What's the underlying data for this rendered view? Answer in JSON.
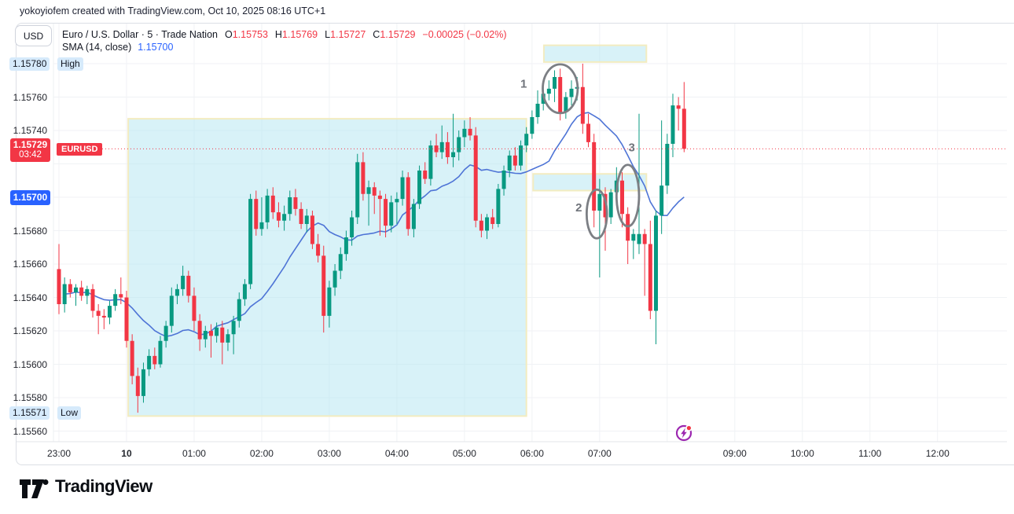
{
  "header": {
    "attribution": "yokoyiofem created with TradingView.com, Oct 10, 2025 08:16 UTC+1"
  },
  "toolbar": {
    "currency_label": "USD"
  },
  "legend": {
    "symbol_title": "Euro / U.S. Dollar · 5 · Trade Nation",
    "ohlc": [
      {
        "label": "O",
        "value": "1.15753"
      },
      {
        "label": "H",
        "value": "1.15769"
      },
      {
        "label": "L",
        "value": "1.15727"
      },
      {
        "label": "C",
        "value": "1.15729"
      }
    ],
    "change": "−0.00025 (−0.02%)",
    "indicator": {
      "name": "SMA (14, close)",
      "value": "1.15700"
    }
  },
  "price_axis": {
    "labels": [
      {
        "text": "1.15760",
        "price": 1.1576
      },
      {
        "text": "1.15740",
        "price": 1.1574
      },
      {
        "text": "1.15680",
        "price": 1.1568
      },
      {
        "text": "1.15660",
        "price": 1.1566
      },
      {
        "text": "1.15640",
        "price": 1.1564
      },
      {
        "text": "1.15620",
        "price": 1.1562
      },
      {
        "text": "1.15600",
        "price": 1.156
      },
      {
        "text": "1.15580",
        "price": 1.1558
      },
      {
        "text": "1.15560",
        "price": 1.1556
      }
    ],
    "high_marker": {
      "value": "1.15780",
      "tag": "High",
      "price": 1.1578
    },
    "low_marker": {
      "value": "1.15571",
      "tag": "Low",
      "price": 1.15571
    },
    "price_badge": {
      "price": "1.15729",
      "countdown": "03:42",
      "price_num": 1.15729
    },
    "symbol_chip": "EURUSD",
    "sma_badge": {
      "text": "1.15700",
      "price_num": 1.157
    }
  },
  "time_axis": {
    "labels": [
      {
        "text": "23:00",
        "i": 0
      },
      {
        "text": "10",
        "i": 12,
        "bold": true
      },
      {
        "text": "01:00",
        "i": 24
      },
      {
        "text": "02:00",
        "i": 36
      },
      {
        "text": "03:00",
        "i": 48
      },
      {
        "text": "04:00",
        "i": 60
      },
      {
        "text": "05:00",
        "i": 72
      },
      {
        "text": "06:00",
        "i": 84
      },
      {
        "text": "07:00",
        "i": 96
      },
      {
        "text": "09:00",
        "i": 120
      },
      {
        "text": "10:00",
        "i": 132
      },
      {
        "text": "11:00",
        "i": 144
      },
      {
        "text": "12:00",
        "i": 156
      }
    ]
  },
  "chart_data": {
    "type": "candlestick",
    "symbol": "EURUSD",
    "title": "Euro / U.S. Dollar · 5 · Trade Nation",
    "interval_minutes": 5,
    "start_time": "23:00",
    "session_high": 1.1578,
    "session_low": 1.15571,
    "last_bar": {
      "open": 1.15753,
      "high": 1.15769,
      "low": 1.15727,
      "close": 1.15729,
      "change": -0.00025,
      "change_pct": -0.02
    },
    "sma": {
      "period": 14,
      "source": "close",
      "current": 1.157
    },
    "ylim": [
      1.15555,
      1.15795
    ],
    "candles": [
      [
        1.15657,
        1.15672,
        1.1563,
        1.15636
      ],
      [
        1.15636,
        1.15652,
        1.15631,
        1.15648
      ],
      [
        1.15648,
        1.15651,
        1.1564,
        1.15643
      ],
      [
        1.15643,
        1.15648,
        1.15635,
        1.15646
      ],
      [
        1.15646,
        1.1565,
        1.15638,
        1.15641
      ],
      [
        1.15641,
        1.15647,
        1.15636,
        1.15645
      ],
      [
        1.15645,
        1.15648,
        1.15628,
        1.15632
      ],
      [
        1.15632,
        1.15636,
        1.15618,
        1.15629
      ],
      [
        1.15629,
        1.15633,
        1.15621,
        1.15628
      ],
      [
        1.15628,
        1.15638,
        1.15624,
        1.15635
      ],
      [
        1.15635,
        1.15645,
        1.15632,
        1.15642
      ],
      [
        1.15642,
        1.15652,
        1.15636,
        1.1564
      ],
      [
        1.1564,
        1.15644,
        1.1561,
        1.15614
      ],
      [
        1.15614,
        1.15618,
        1.15588,
        1.15593
      ],
      [
        1.15593,
        1.15598,
        1.15571,
        1.15581
      ],
      [
        1.15581,
        1.15601,
        1.15577,
        1.15597
      ],
      [
        1.15597,
        1.15609,
        1.15593,
        1.15605
      ],
      [
        1.15605,
        1.1561,
        1.15597,
        1.156
      ],
      [
        1.156,
        1.15617,
        1.15598,
        1.15614
      ],
      [
        1.15614,
        1.15626,
        1.1561,
        1.15623
      ],
      [
        1.15623,
        1.15646,
        1.15619,
        1.15641
      ],
      [
        1.15641,
        1.15648,
        1.15636,
        1.15645
      ],
      [
        1.15645,
        1.15659,
        1.15641,
        1.15653
      ],
      [
        1.15653,
        1.15656,
        1.15637,
        1.15641
      ],
      [
        1.15641,
        1.15646,
        1.1562,
        1.15626
      ],
      [
        1.15626,
        1.1563,
        1.15608,
        1.15615
      ],
      [
        1.15615,
        1.15623,
        1.1561,
        1.1562
      ],
      [
        1.1562,
        1.15624,
        1.15604,
        1.15617
      ],
      [
        1.15617,
        1.15625,
        1.15613,
        1.15622
      ],
      [
        1.15622,
        1.15626,
        1.156,
        1.15613
      ],
      [
        1.15613,
        1.15621,
        1.15608,
        1.15618
      ],
      [
        1.15618,
        1.15629,
        1.15606,
        1.15626
      ],
      [
        1.15626,
        1.15643,
        1.15622,
        1.15639
      ],
      [
        1.15639,
        1.15651,
        1.15635,
        1.15648
      ],
      [
        1.15648,
        1.15702,
        1.15645,
        1.15699
      ],
      [
        1.15699,
        1.15704,
        1.15677,
        1.15681
      ],
      [
        1.15681,
        1.157,
        1.15677,
        1.15685
      ],
      [
        1.15685,
        1.15705,
        1.15681,
        1.15701
      ],
      [
        1.15701,
        1.15706,
        1.15687,
        1.15691
      ],
      [
        1.15691,
        1.15697,
        1.15682,
        1.15686
      ],
      [
        1.15686,
        1.15695,
        1.1568,
        1.1569
      ],
      [
        1.1569,
        1.15704,
        1.15686,
        1.157
      ],
      [
        1.157,
        1.15705,
        1.15689,
        1.15693
      ],
      [
        1.15693,
        1.15697,
        1.15681,
        1.15684
      ],
      [
        1.15684,
        1.15693,
        1.15679,
        1.15689
      ],
      [
        1.15689,
        1.15692,
        1.15669,
        1.15672
      ],
      [
        1.15672,
        1.15678,
        1.15661,
        1.15665
      ],
      [
        1.15665,
        1.15671,
        1.15619,
        1.15629
      ],
      [
        1.15629,
        1.1565,
        1.15622,
        1.15646
      ],
      [
        1.15646,
        1.1566,
        1.15641,
        1.15656
      ],
      [
        1.15656,
        1.1567,
        1.15651,
        1.15666
      ],
      [
        1.15666,
        1.1568,
        1.15662,
        1.15676
      ],
      [
        1.15676,
        1.15692,
        1.15671,
        1.15688
      ],
      [
        1.15688,
        1.15726,
        1.15684,
        1.15721
      ],
      [
        1.15721,
        1.15727,
        1.15698,
        1.15702
      ],
      [
        1.15702,
        1.1571,
        1.15683,
        1.15706
      ],
      [
        1.15706,
        1.15709,
        1.1569,
        1.15701
      ],
      [
        1.15701,
        1.15704,
        1.15677,
        1.15699
      ],
      [
        1.15699,
        1.15702,
        1.15676,
        1.15683
      ],
      [
        1.15683,
        1.15701,
        1.15679,
        1.15697
      ],
      [
        1.15697,
        1.15703,
        1.15684,
        1.15699
      ],
      [
        1.15699,
        1.15716,
        1.15695,
        1.15712
      ],
      [
        1.15712,
        1.15715,
        1.15677,
        1.15681
      ],
      [
        1.15681,
        1.15699,
        1.15676,
        1.15696
      ],
      [
        1.15696,
        1.15719,
        1.15693,
        1.15716
      ],
      [
        1.15716,
        1.15721,
        1.15708,
        1.15711
      ],
      [
        1.15711,
        1.15734,
        1.15707,
        1.15731
      ],
      [
        1.15731,
        1.15738,
        1.15724,
        1.15727
      ],
      [
        1.15727,
        1.15743,
        1.15723,
        1.15733
      ],
      [
        1.15733,
        1.15739,
        1.1572,
        1.15724
      ],
      [
        1.15724,
        1.1575,
        1.15718,
        1.15727
      ],
      [
        1.15727,
        1.1574,
        1.15722,
        1.15736
      ],
      [
        1.15736,
        1.15746,
        1.1573,
        1.15741
      ],
      [
        1.15741,
        1.15748,
        1.15734,
        1.15737
      ],
      [
        1.15737,
        1.15742,
        1.15682,
        1.15686
      ],
      [
        1.15686,
        1.1569,
        1.15676,
        1.1568
      ],
      [
        1.1568,
        1.1569,
        1.15675,
        1.15688
      ],
      [
        1.15688,
        1.15693,
        1.15681,
        1.15684
      ],
      [
        1.15684,
        1.15708,
        1.15682,
        1.15705
      ],
      [
        1.15705,
        1.15719,
        1.15701,
        1.15716
      ],
      [
        1.15716,
        1.15728,
        1.15712,
        1.15725
      ],
      [
        1.15725,
        1.1573,
        1.15716,
        1.15719
      ],
      [
        1.15719,
        1.15734,
        1.15716,
        1.15731
      ],
      [
        1.15731,
        1.15742,
        1.15727,
        1.15738
      ],
      [
        1.15738,
        1.15752,
        1.15735,
        1.15748
      ],
      [
        1.15748,
        1.15764,
        1.15744,
        1.15756
      ],
      [
        1.15756,
        1.15766,
        1.15752,
        1.15762
      ],
      [
        1.15762,
        1.1577,
        1.15758,
        1.15765
      ],
      [
        1.15765,
        1.15776,
        1.15757,
        1.15772
      ],
      [
        1.15772,
        1.15777,
        1.15746,
        1.15751
      ],
      [
        1.15751,
        1.15763,
        1.15747,
        1.1576
      ],
      [
        1.1576,
        1.1577,
        1.15755,
        1.15765
      ],
      [
        1.15765,
        1.15772,
        1.15758,
        1.15766
      ],
      [
        1.15766,
        1.1578,
        1.15738,
        1.15744
      ],
      [
        1.15744,
        1.1575,
        1.1573,
        1.15733
      ],
      [
        1.15733,
        1.15738,
        1.15682,
        1.15692
      ],
      [
        1.15692,
        1.15711,
        1.15652,
        1.15702
      ],
      [
        1.15702,
        1.15706,
        1.15668,
        1.15688
      ],
      [
        1.15688,
        1.15705,
        1.15684,
        1.15703
      ],
      [
        1.15703,
        1.15718,
        1.15698,
        1.1571
      ],
      [
        1.1571,
        1.15715,
        1.15682,
        1.1569
      ],
      [
        1.1569,
        1.15694,
        1.1566,
        1.15674
      ],
      [
        1.15674,
        1.15681,
        1.15663,
        1.15678
      ],
      [
        1.15672,
        1.1575,
        1.15666,
        1.15678
      ],
      [
        1.15678,
        1.15681,
        1.15641,
        1.15672
      ],
      [
        1.15672,
        1.15686,
        1.15627,
        1.15632
      ],
      [
        1.15632,
        1.15692,
        1.15612,
        1.15689
      ],
      [
        1.15689,
        1.15746,
        1.15678,
        1.15707
      ],
      [
        1.15707,
        1.15738,
        1.15702,
        1.15732
      ],
      [
        1.15732,
        1.15762,
        1.15724,
        1.15755
      ],
      [
        1.15755,
        1.1576,
        1.1574,
        1.15753
      ],
      [
        1.15753,
        1.15769,
        1.15727,
        1.15729
      ]
    ],
    "annotations": {
      "highlight_boxes": [
        {
          "i1": 12.3,
          "i2": 83.0,
          "p1": 1.15747,
          "p2": 1.15569
        },
        {
          "i1": 86.1,
          "i2": 104.3,
          "p1": 1.15791,
          "p2": 1.15781
        },
        {
          "i1": 84.2,
          "i2": 104.3,
          "p1": 1.15714,
          "p2": 1.15704
        }
      ],
      "ellipses": [
        {
          "n": "1",
          "i": 89.0,
          "p": 1.15765,
          "ri": 3.1,
          "rp": 14.6,
          "label_i": 82.5,
          "label_p": 1.15768
        },
        {
          "n": "2",
          "i": 95.5,
          "p": 1.1569,
          "ri": 1.8,
          "rp": 14.6,
          "label_i": 92.3,
          "label_p": 1.15694
        },
        {
          "n": "3",
          "i": 101.0,
          "p": 1.15701,
          "ri": 2.0,
          "rp": 18.4,
          "label_i": 101.7,
          "label_p": 1.1573
        }
      ],
      "event_icon": {
        "i": 110.9,
        "name": "high-volatility-event"
      }
    }
  },
  "footer": {
    "logo_text": "TradingView"
  },
  "colors": {
    "up": "#089981",
    "down": "#f23645",
    "sma": "#4e74d6",
    "grid": "#f0f2f5",
    "box_fill": "rgba(178,230,242,0.5)",
    "box_border": "#f3ecc0",
    "ellipse": "#7c7f84",
    "numeral": "#70747b",
    "badge_red": "#f23645",
    "badge_blue": "#2962ff",
    "marker_bg": "#d6eafb",
    "event_purple": "#9c27b0",
    "dotted_line": "#f23645"
  }
}
